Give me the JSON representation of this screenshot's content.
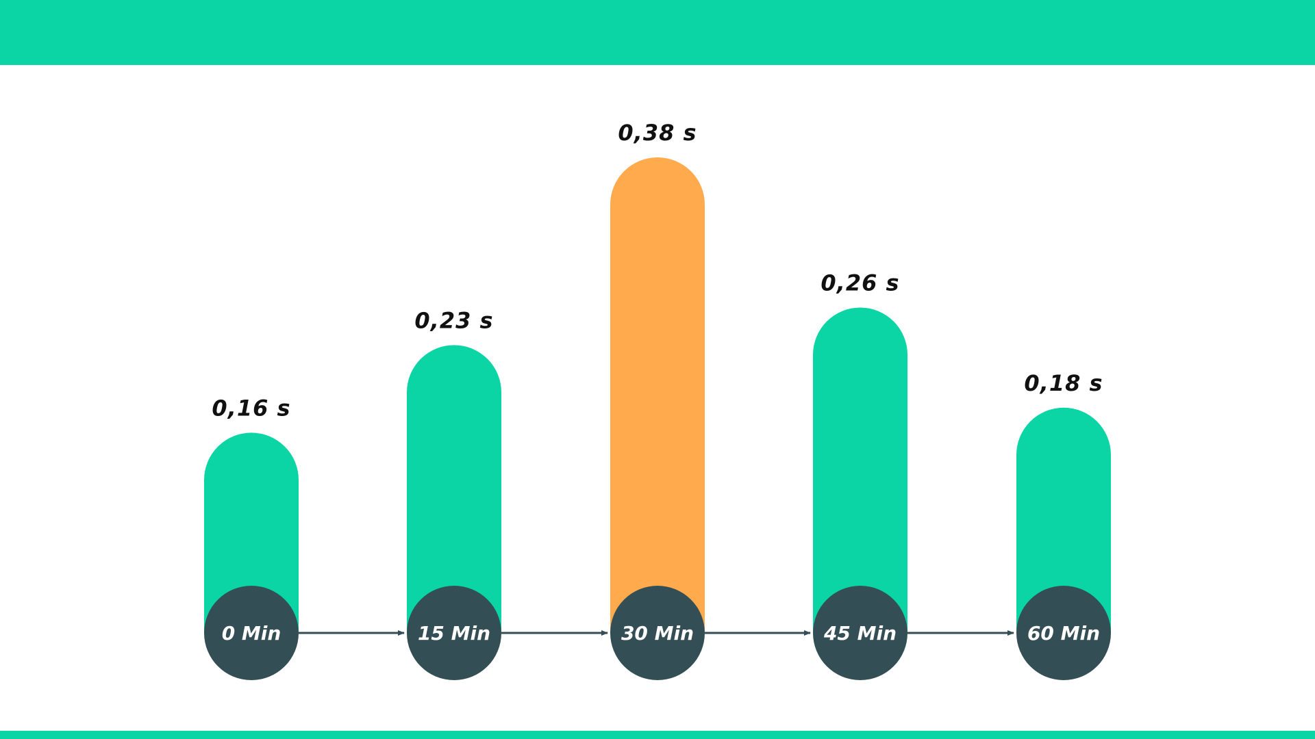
{
  "colors": {
    "band": "#0bd4a5",
    "bar": "#0bd4a5",
    "highlight": "#ffaa4d",
    "circle": "#344e55",
    "arrow": "#344e55",
    "value_text": "#111111",
    "circle_text": "#ffffff"
  },
  "chart_data": {
    "type": "bar",
    "categories": [
      "0 Min",
      "15 Min",
      "30 Min",
      "45 Min",
      "60 Min"
    ],
    "values": [
      0.16,
      0.23,
      0.38,
      0.26,
      0.18
    ],
    "value_labels": [
      "0,16 s",
      "0,23 s",
      "0,38 s",
      "0,26 s",
      "0,18 s"
    ],
    "highlight_index": 2,
    "title": "",
    "xlabel": "",
    "ylabel": "",
    "ylim": [
      0,
      0.38
    ],
    "grid": false
  }
}
